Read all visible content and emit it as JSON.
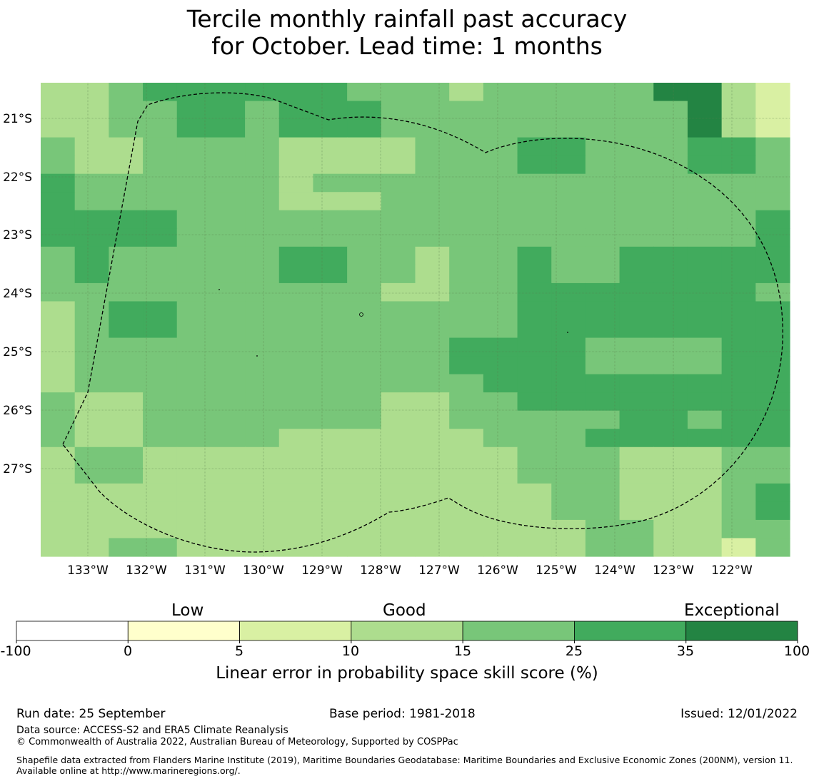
{
  "title": {
    "line1": "Tercile monthly rainfall past accuracy",
    "line2": "for October. Lead time: 1 months"
  },
  "map": {
    "lon_labels": [
      "133°W",
      "132°W",
      "131°W",
      "130°W",
      "129°W",
      "128°W",
      "127°W",
      "126°W",
      "125°W",
      "124°W",
      "123°W",
      "122°W"
    ],
    "lat_labels": [
      "21°S",
      "22°S",
      "23°S",
      "24°S",
      "25°S",
      "26°S",
      "27°S"
    ],
    "grid_level_codes": [
      "3345555554443444446632",
      "3344554555444444444632",
      "3344554555444444444632",
      "4334444333344455444554",
      "4334444333344455444554",
      "5444444344444444444444",
      "5444444333444444444444",
      "5555444444444444444445",
      "5555444444444444444445",
      "4544444554434454455555",
      "4544444554434454455555",
      "4444444444334455555554",
      "3455444444444455555555",
      "3455444444444455555555",
      "3444444444445555444455",
      "3444444444445555444455",
      "3444444444444555555555",
      "4334444444334455555555",
      "4334444444334444455455",
      "4334444333333444555555",
      "3443333333333344433344",
      "3443333333333344433344",
      "3333333333333334433345",
      "3333333333333334433345",
      "3333333333333333443344",
      "3344333333333333443324"
    ],
    "eez_boundary": "dashed black line"
  },
  "colorbar": {
    "category_labels": [
      "Low",
      "Good",
      "Exceptional"
    ],
    "ticks": [
      "-100",
      "0",
      "5",
      "10",
      "15",
      "25",
      "35",
      "100"
    ],
    "colors": [
      "#ffffff",
      "#ffffcc",
      "#d9f0a3",
      "#addd8e",
      "#78c679",
      "#41ab5d",
      "#238443"
    ],
    "label": "Linear error in probability space skill score (%)"
  },
  "footer": {
    "run_date": "Run date: 25 September",
    "base_period": "Base period: 1981-2018",
    "issued": "Issued: 12/01/2022",
    "data_source": "Data source: ACCESS-S2 and ERA5 Climate Reanalysis",
    "copyright": "© Commonwealth of Australia 2022, Australian Bureau of Meteorology, Supported by COSPPac",
    "shapefile_credit": "Shapefile data extracted from Flanders Marine Institute (2019), Maritime Boundaries Geodatabase: Maritime Boundaries and Exclusive Economic Zones (200NM), version 11. Available online at http://www.marineregions.org/."
  }
}
